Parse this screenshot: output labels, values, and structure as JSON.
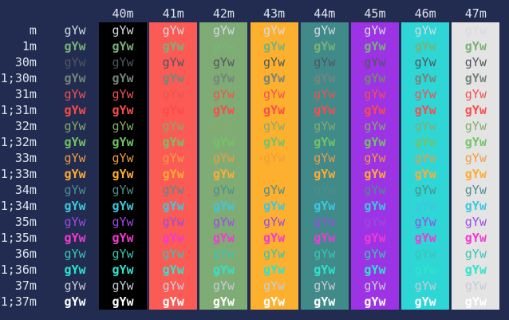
{
  "terminal": {
    "background": "#212c50",
    "label_color": "#dde2ec",
    "sample_text": "gYw",
    "columns": [
      {
        "label": "40m",
        "bg": "#000000"
      },
      {
        "label": "41m",
        "bg": "#fb5a55"
      },
      {
        "label": "42m",
        "bg": "#7fac75"
      },
      {
        "label": "43m",
        "bg": "#fdb02e"
      },
      {
        "label": "44m",
        "bg": "#418a8a"
      },
      {
        "label": "45m",
        "bg": "#9c33e4"
      },
      {
        "label": "46m",
        "bg": "#2ed6d6"
      },
      {
        "label": "47m",
        "bg": "#e4e4e4"
      }
    ],
    "rows": [
      {
        "label": "m",
        "fg": "#d5dae2",
        "bold": false
      },
      {
        "label": "1m",
        "fg": "#79b378",
        "bold": true
      },
      {
        "label": "30m",
        "fg": "#515560",
        "bold": false
      },
      {
        "label": "1;30m",
        "fg": "#75857a",
        "bold": true
      },
      {
        "label": "31m",
        "fg": "#f0524f",
        "bold": false
      },
      {
        "label": "1;31m",
        "fg": "#fb4b4b",
        "bold": true
      },
      {
        "label": "32m",
        "fg": "#85ab6d",
        "bold": false
      },
      {
        "label": "1;32m",
        "fg": "#74c365",
        "bold": true
      },
      {
        "label": "33m",
        "fg": "#ee9d3f",
        "bold": false
      },
      {
        "label": "1;33m",
        "fg": "#ffac33",
        "bold": true
      },
      {
        "label": "34m",
        "fg": "#4f8d8b",
        "bold": false
      },
      {
        "label": "1;34m",
        "fg": "#3ec7dd",
        "bold": true
      },
      {
        "label": "35m",
        "fg": "#9b4be4",
        "bold": false
      },
      {
        "label": "1;35m",
        "fg": "#f23ad3",
        "bold": true
      },
      {
        "label": "36m",
        "fg": "#38c5b2",
        "bold": false
      },
      {
        "label": "1;36m",
        "fg": "#2fe3cd",
        "bold": true
      },
      {
        "label": "37m",
        "fg": "#c6ccd6",
        "bold": false
      },
      {
        "label": "1;37m",
        "fg": "#ffffff",
        "bold": true
      }
    ]
  }
}
